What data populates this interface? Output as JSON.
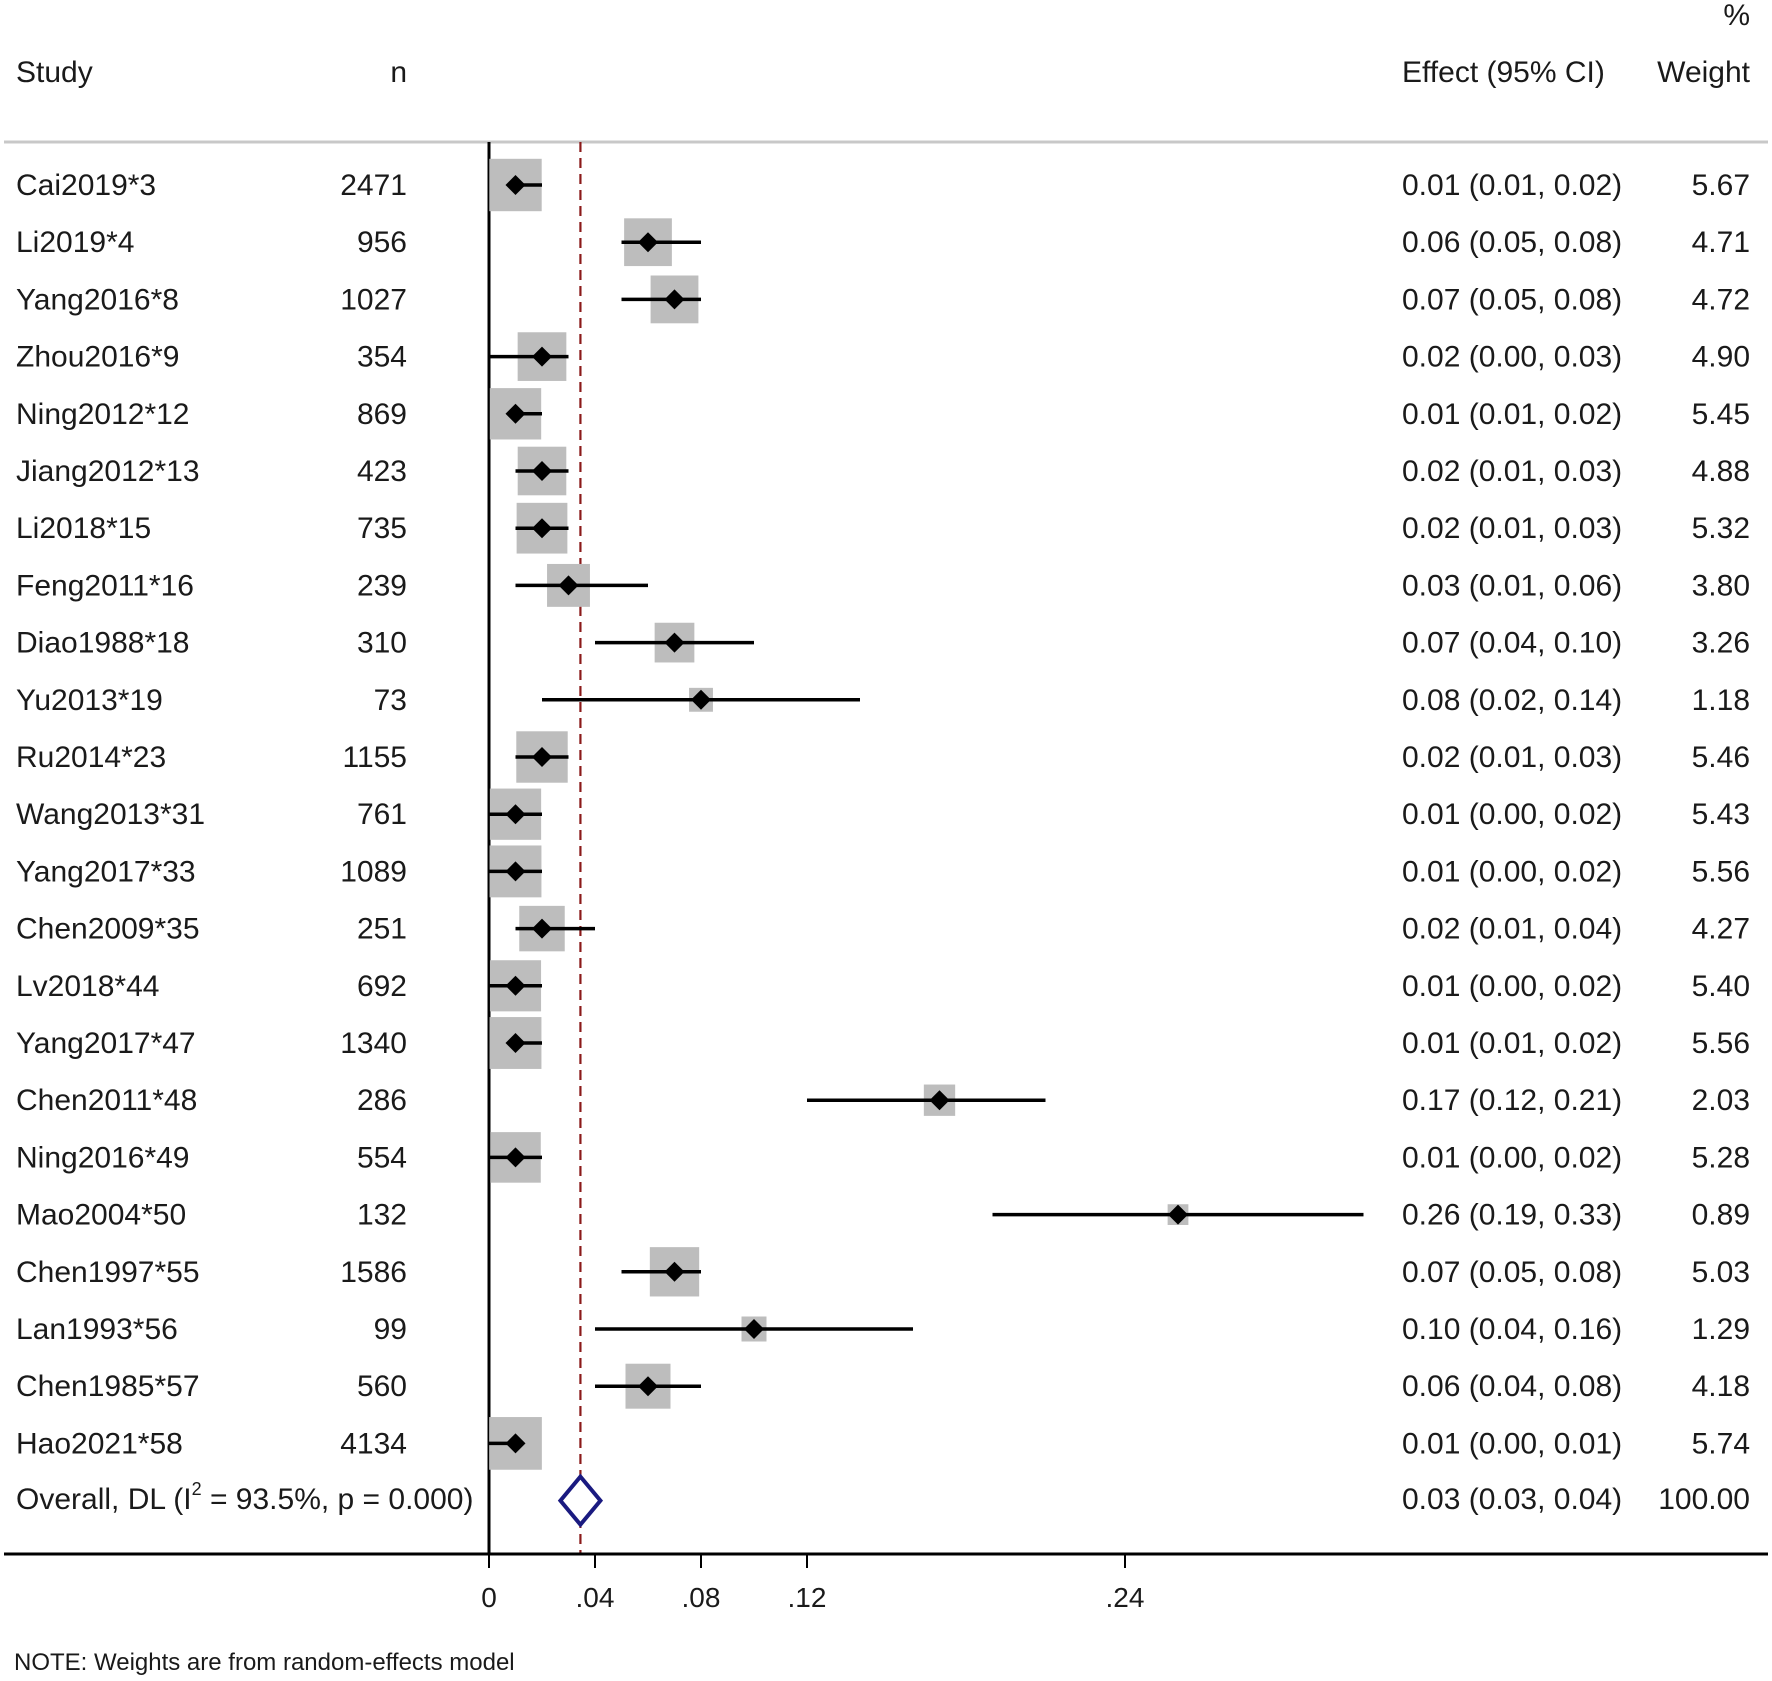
{
  "chart_data": {
    "type": "forest",
    "header": {
      "study": "Study",
      "n": "n",
      "effect": "Effect (95% CI)",
      "weight_pct": "%",
      "weight": "Weight"
    },
    "rows": [
      {
        "study": "Cai2019*3",
        "n": "2471",
        "effect": 0.01,
        "lo": 0.01,
        "hi": 0.02,
        "effect_text": "0.01 (0.01, 0.02)",
        "weight": 5.67,
        "weight_text": "5.67"
      },
      {
        "study": "Li2019*4",
        "n": "956",
        "effect": 0.06,
        "lo": 0.05,
        "hi": 0.08,
        "effect_text": "0.06 (0.05, 0.08)",
        "weight": 4.71,
        "weight_text": "4.71"
      },
      {
        "study": "Yang2016*8",
        "n": "1027",
        "effect": 0.07,
        "lo": 0.05,
        "hi": 0.08,
        "effect_text": "0.07 (0.05, 0.08)",
        "weight": 4.72,
        "weight_text": "4.72"
      },
      {
        "study": "Zhou2016*9",
        "n": "354",
        "effect": 0.02,
        "lo": 0.0,
        "hi": 0.03,
        "effect_text": "0.02 (0.00, 0.03)",
        "weight": 4.9,
        "weight_text": "4.90"
      },
      {
        "study": "Ning2012*12",
        "n": "869",
        "effect": 0.01,
        "lo": 0.01,
        "hi": 0.02,
        "effect_text": "0.01 (0.01, 0.02)",
        "weight": 5.45,
        "weight_text": "5.45"
      },
      {
        "study": "Jiang2012*13",
        "n": "423",
        "effect": 0.02,
        "lo": 0.01,
        "hi": 0.03,
        "effect_text": "0.02 (0.01, 0.03)",
        "weight": 4.88,
        "weight_text": "4.88"
      },
      {
        "study": "Li2018*15",
        "n": "735",
        "effect": 0.02,
        "lo": 0.01,
        "hi": 0.03,
        "effect_text": "0.02 (0.01, 0.03)",
        "weight": 5.32,
        "weight_text": "5.32"
      },
      {
        "study": "Feng2011*16",
        "n": "239",
        "effect": 0.03,
        "lo": 0.01,
        "hi": 0.06,
        "effect_text": "0.03 (0.01, 0.06)",
        "weight": 3.8,
        "weight_text": "3.80"
      },
      {
        "study": "Diao1988*18",
        "n": "310",
        "effect": 0.07,
        "lo": 0.04,
        "hi": 0.1,
        "effect_text": "0.07 (0.04, 0.10)",
        "weight": 3.26,
        "weight_text": "3.26"
      },
      {
        "study": "Yu2013*19",
        "n": "73",
        "effect": 0.08,
        "lo": 0.02,
        "hi": 0.14,
        "effect_text": "0.08 (0.02, 0.14)",
        "weight": 1.18,
        "weight_text": "1.18"
      },
      {
        "study": "Ru2014*23",
        "n": "1155",
        "effect": 0.02,
        "lo": 0.01,
        "hi": 0.03,
        "effect_text": "0.02 (0.01, 0.03)",
        "weight": 5.46,
        "weight_text": "5.46"
      },
      {
        "study": "Wang2013*31",
        "n": "761",
        "effect": 0.01,
        "lo": 0.0,
        "hi": 0.02,
        "effect_text": "0.01 (0.00, 0.02)",
        "weight": 5.43,
        "weight_text": "5.43"
      },
      {
        "study": "Yang2017*33",
        "n": "1089",
        "effect": 0.01,
        "lo": 0.0,
        "hi": 0.02,
        "effect_text": "0.01 (0.00, 0.02)",
        "weight": 5.56,
        "weight_text": "5.56"
      },
      {
        "study": "Chen2009*35",
        "n": "251",
        "effect": 0.02,
        "lo": 0.01,
        "hi": 0.04,
        "effect_text": "0.02 (0.01, 0.04)",
        "weight": 4.27,
        "weight_text": "4.27"
      },
      {
        "study": "Lv2018*44",
        "n": "692",
        "effect": 0.01,
        "lo": 0.0,
        "hi": 0.02,
        "effect_text": "0.01 (0.00, 0.02)",
        "weight": 5.4,
        "weight_text": "5.40"
      },
      {
        "study": "Yang2017*47",
        "n": "1340",
        "effect": 0.01,
        "lo": 0.01,
        "hi": 0.02,
        "effect_text": "0.01 (0.01, 0.02)",
        "weight": 5.56,
        "weight_text": "5.56"
      },
      {
        "study": "Chen2011*48",
        "n": "286",
        "effect": 0.17,
        "lo": 0.12,
        "hi": 0.21,
        "effect_text": "0.17 (0.12, 0.21)",
        "weight": 2.03,
        "weight_text": "2.03"
      },
      {
        "study": "Ning2016*49",
        "n": "554",
        "effect": 0.01,
        "lo": 0.0,
        "hi": 0.02,
        "effect_text": "0.01 (0.00, 0.02)",
        "weight": 5.28,
        "weight_text": "5.28"
      },
      {
        "study": "Mao2004*50",
        "n": "132",
        "effect": 0.26,
        "lo": 0.19,
        "hi": 0.33,
        "effect_text": "0.26 (0.19, 0.33)",
        "weight": 0.89,
        "weight_text": "0.89"
      },
      {
        "study": "Chen1997*55",
        "n": "1586",
        "effect": 0.07,
        "lo": 0.05,
        "hi": 0.08,
        "effect_text": "0.07 (0.05, 0.08)",
        "weight": 5.03,
        "weight_text": "5.03"
      },
      {
        "study": "Lan1993*56",
        "n": "99",
        "effect": 0.1,
        "lo": 0.04,
        "hi": 0.16,
        "effect_text": "0.10 (0.04, 0.16)",
        "weight": 1.29,
        "weight_text": "1.29"
      },
      {
        "study": "Chen1985*57",
        "n": "560",
        "effect": 0.06,
        "lo": 0.04,
        "hi": 0.08,
        "effect_text": "0.06 (0.04, 0.08)",
        "weight": 4.18,
        "weight_text": "4.18"
      },
      {
        "study": "Hao2021*58",
        "n": "4134",
        "effect": 0.01,
        "lo": 0.0,
        "hi": 0.01,
        "effect_text": "0.01 (0.00, 0.01)",
        "weight": 5.74,
        "weight_text": "5.74"
      }
    ],
    "overall": {
      "label_prefix": "Overall, DL (I",
      "label_sup": "2",
      "label_suffix": " = 93.5%, p = 0.000)",
      "effect": 0.03,
      "lo": 0.03,
      "hi": 0.04,
      "effect_text": "0.03 (0.03, 0.04)",
      "weight_text": "100.00"
    },
    "x_axis": {
      "ticks": [
        0,
        0.04,
        0.08,
        0.12,
        0.24
      ],
      "tick_labels": [
        "0",
        ".04",
        ".08",
        ".12",
        ".24"
      ],
      "range": [
        0,
        0.335
      ]
    },
    "null_line": 0,
    "note": "NOTE: Weights are from random-effects model",
    "colors": {
      "weight_box": "#bdbdbd",
      "point": "#000000",
      "ci_line": "#000000",
      "overall_diamond": "#1a1a80",
      "overall_line": "#8b1a1a",
      "rule": "#c8c8c8"
    }
  }
}
